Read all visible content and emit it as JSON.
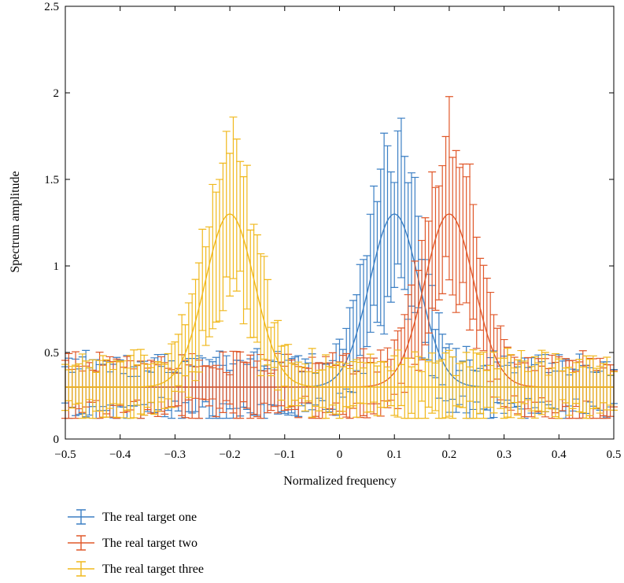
{
  "chart_data": {
    "type": "line",
    "title": "",
    "xlabel": "Normalized frequency",
    "ylabel": "Spectrum amplitude",
    "xlim": [
      -0.5,
      0.5
    ],
    "ylim": [
      0,
      2.5
    ],
    "xticks": [
      -0.5,
      -0.4,
      -0.3,
      -0.2,
      -0.1,
      0,
      0.1,
      0.2,
      0.3,
      0.4,
      0.5
    ],
    "xtick_labels": [
      "−0.5",
      "−0.4",
      "−0.3",
      "−0.2",
      "−0.1",
      "0",
      "0.1",
      "0.2",
      "0.3",
      "0.4",
      "0.5"
    ],
    "yticks": [
      0,
      0.5,
      1,
      1.5,
      2,
      2.5
    ],
    "ytick_labels": [
      "0",
      "0.5",
      "1",
      "1.5",
      "2",
      "2.5"
    ],
    "grid": false,
    "legend_position": "below-left",
    "series": [
      {
        "name": "The real target one",
        "color": "#3b7fc4",
        "center": 0.1,
        "peak": 1.3,
        "baseline": 0.3,
        "width": 0.045,
        "errorbars": true
      },
      {
        "name": "The real target two",
        "color": "#e0582a",
        "center": 0.2,
        "peak": 1.3,
        "baseline": 0.3,
        "width": 0.045,
        "errorbars": true
      },
      {
        "name": "The real target three",
        "color": "#f0b81c",
        "center": -0.2,
        "peak": 1.3,
        "baseline": 0.3,
        "width": 0.045,
        "errorbars": true
      }
    ]
  }
}
